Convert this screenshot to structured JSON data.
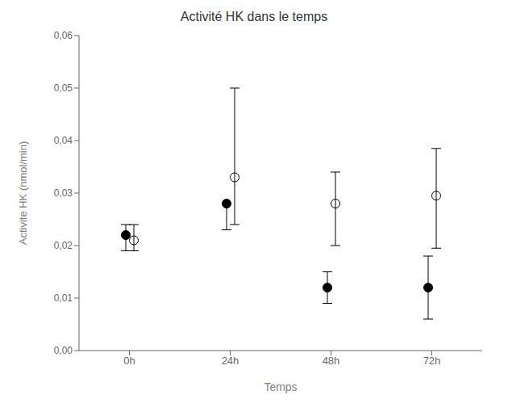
{
  "chart_data": {
    "type": "scatter",
    "title": "Activité HK dans le temps",
    "xlabel": "Temps",
    "ylabel": "Activite HK (nmol/min)",
    "categories": [
      "0h",
      "24h",
      "48h",
      "72h"
    ],
    "series": [
      {
        "color": "black",
        "marker": "circle",
        "values": [
          0.022,
          0.028,
          0.012,
          0.012
        ],
        "error_lo": [
          0.003,
          0.005,
          0.003,
          0.006
        ],
        "error_hi": [
          0.002,
          0.0,
          0.003,
          0.006
        ]
      },
      {
        "color": "white",
        "marker": "circle",
        "values": [
          0.021,
          0.033,
          0.028,
          0.0295
        ],
        "error_lo": [
          0.002,
          0.009,
          0.008,
          0.01
        ],
        "error_hi": [
          0.003,
          0.017,
          0.006,
          0.009
        ]
      }
    ],
    "ylim": [
      0.0,
      0.06
    ],
    "yticks": [
      {
        "value": 0.0,
        "label": "0,00"
      },
      {
        "value": 0.01,
        "label": "0,01"
      },
      {
        "value": 0.02,
        "label": "0,02"
      },
      {
        "value": 0.03,
        "label": "0,03"
      },
      {
        "value": 0.04,
        "label": "0,04"
      },
      {
        "value": 0.05,
        "label": "0,05"
      },
      {
        "value": 0.06,
        "label": "0,06"
      }
    ],
    "grid": false
  }
}
